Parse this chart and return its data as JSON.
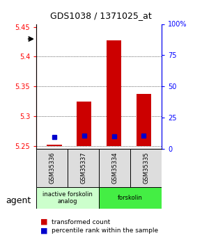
{
  "title": "GDS1038 / 1371025_at",
  "samples": [
    "GSM35336",
    "GSM35337",
    "GSM35334",
    "GSM35335"
  ],
  "bar_base": 5.25,
  "transformed_counts": [
    5.252,
    5.325,
    5.428,
    5.337
  ],
  "percentile_ranks": [
    0.5,
    2.5,
    2.5,
    2.5
  ],
  "percentile_rank_values": [
    5.265,
    5.267,
    5.266,
    5.267
  ],
  "ylim_left": [
    5.245,
    5.455
  ],
  "ylim_right": [
    0,
    100
  ],
  "yticks_left": [
    5.25,
    5.3,
    5.35,
    5.4,
    5.45
  ],
  "yticks_right": [
    0,
    25,
    50,
    75,
    100
  ],
  "groups": [
    {
      "label": "inactive forskolin\nanalog",
      "cols": [
        0,
        1
      ],
      "color": "#ccffcc"
    },
    {
      "label": "forskolin",
      "cols": [
        2,
        3
      ],
      "color": "#44ee44"
    }
  ],
  "bar_color": "#cc0000",
  "percentile_color": "#0000cc",
  "background_color": "#ffffff",
  "plot_bg": "#ffffff",
  "agent_label": "agent",
  "legend_items": [
    {
      "label": "transformed count",
      "color": "#cc0000"
    },
    {
      "label": "percentile rank within the sample",
      "color": "#0000cc"
    }
  ]
}
